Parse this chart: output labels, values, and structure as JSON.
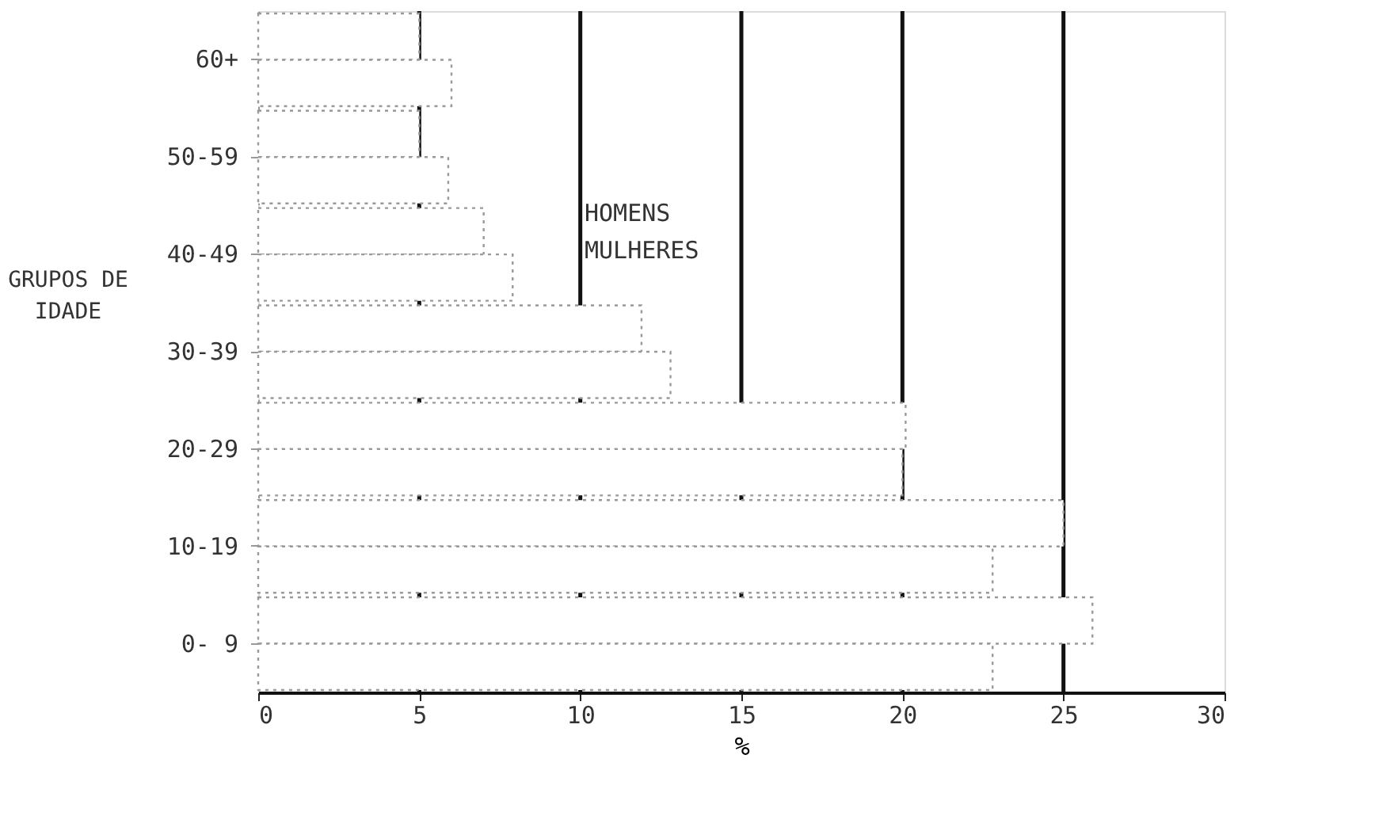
{
  "chart_data": {
    "type": "bar",
    "orientation": "horizontal",
    "xlabel": "%",
    "ylabel": "GRUPOS DE IDADE",
    "categories": [
      "60+",
      "50-59",
      "40-49",
      "30-39",
      "20-29",
      "10-19",
      "0- 9"
    ],
    "series": [
      {
        "color": "#ffffff",
        "values": [
          5.0,
          5.0,
          7.0,
          11.9,
          20.1,
          25.0,
          25.9
        ]
      },
      {
        "color": "#ffffff",
        "values": [
          6.0,
          5.9,
          7.9,
          12.8,
          20.0,
          22.8,
          22.8
        ]
      }
    ],
    "annotations": [
      "HOMENS",
      "MULHERES"
    ],
    "xlim": [
      0,
      30
    ],
    "xticks": [
      0,
      5,
      10,
      15,
      20,
      25,
      30
    ],
    "grid": "x"
  }
}
